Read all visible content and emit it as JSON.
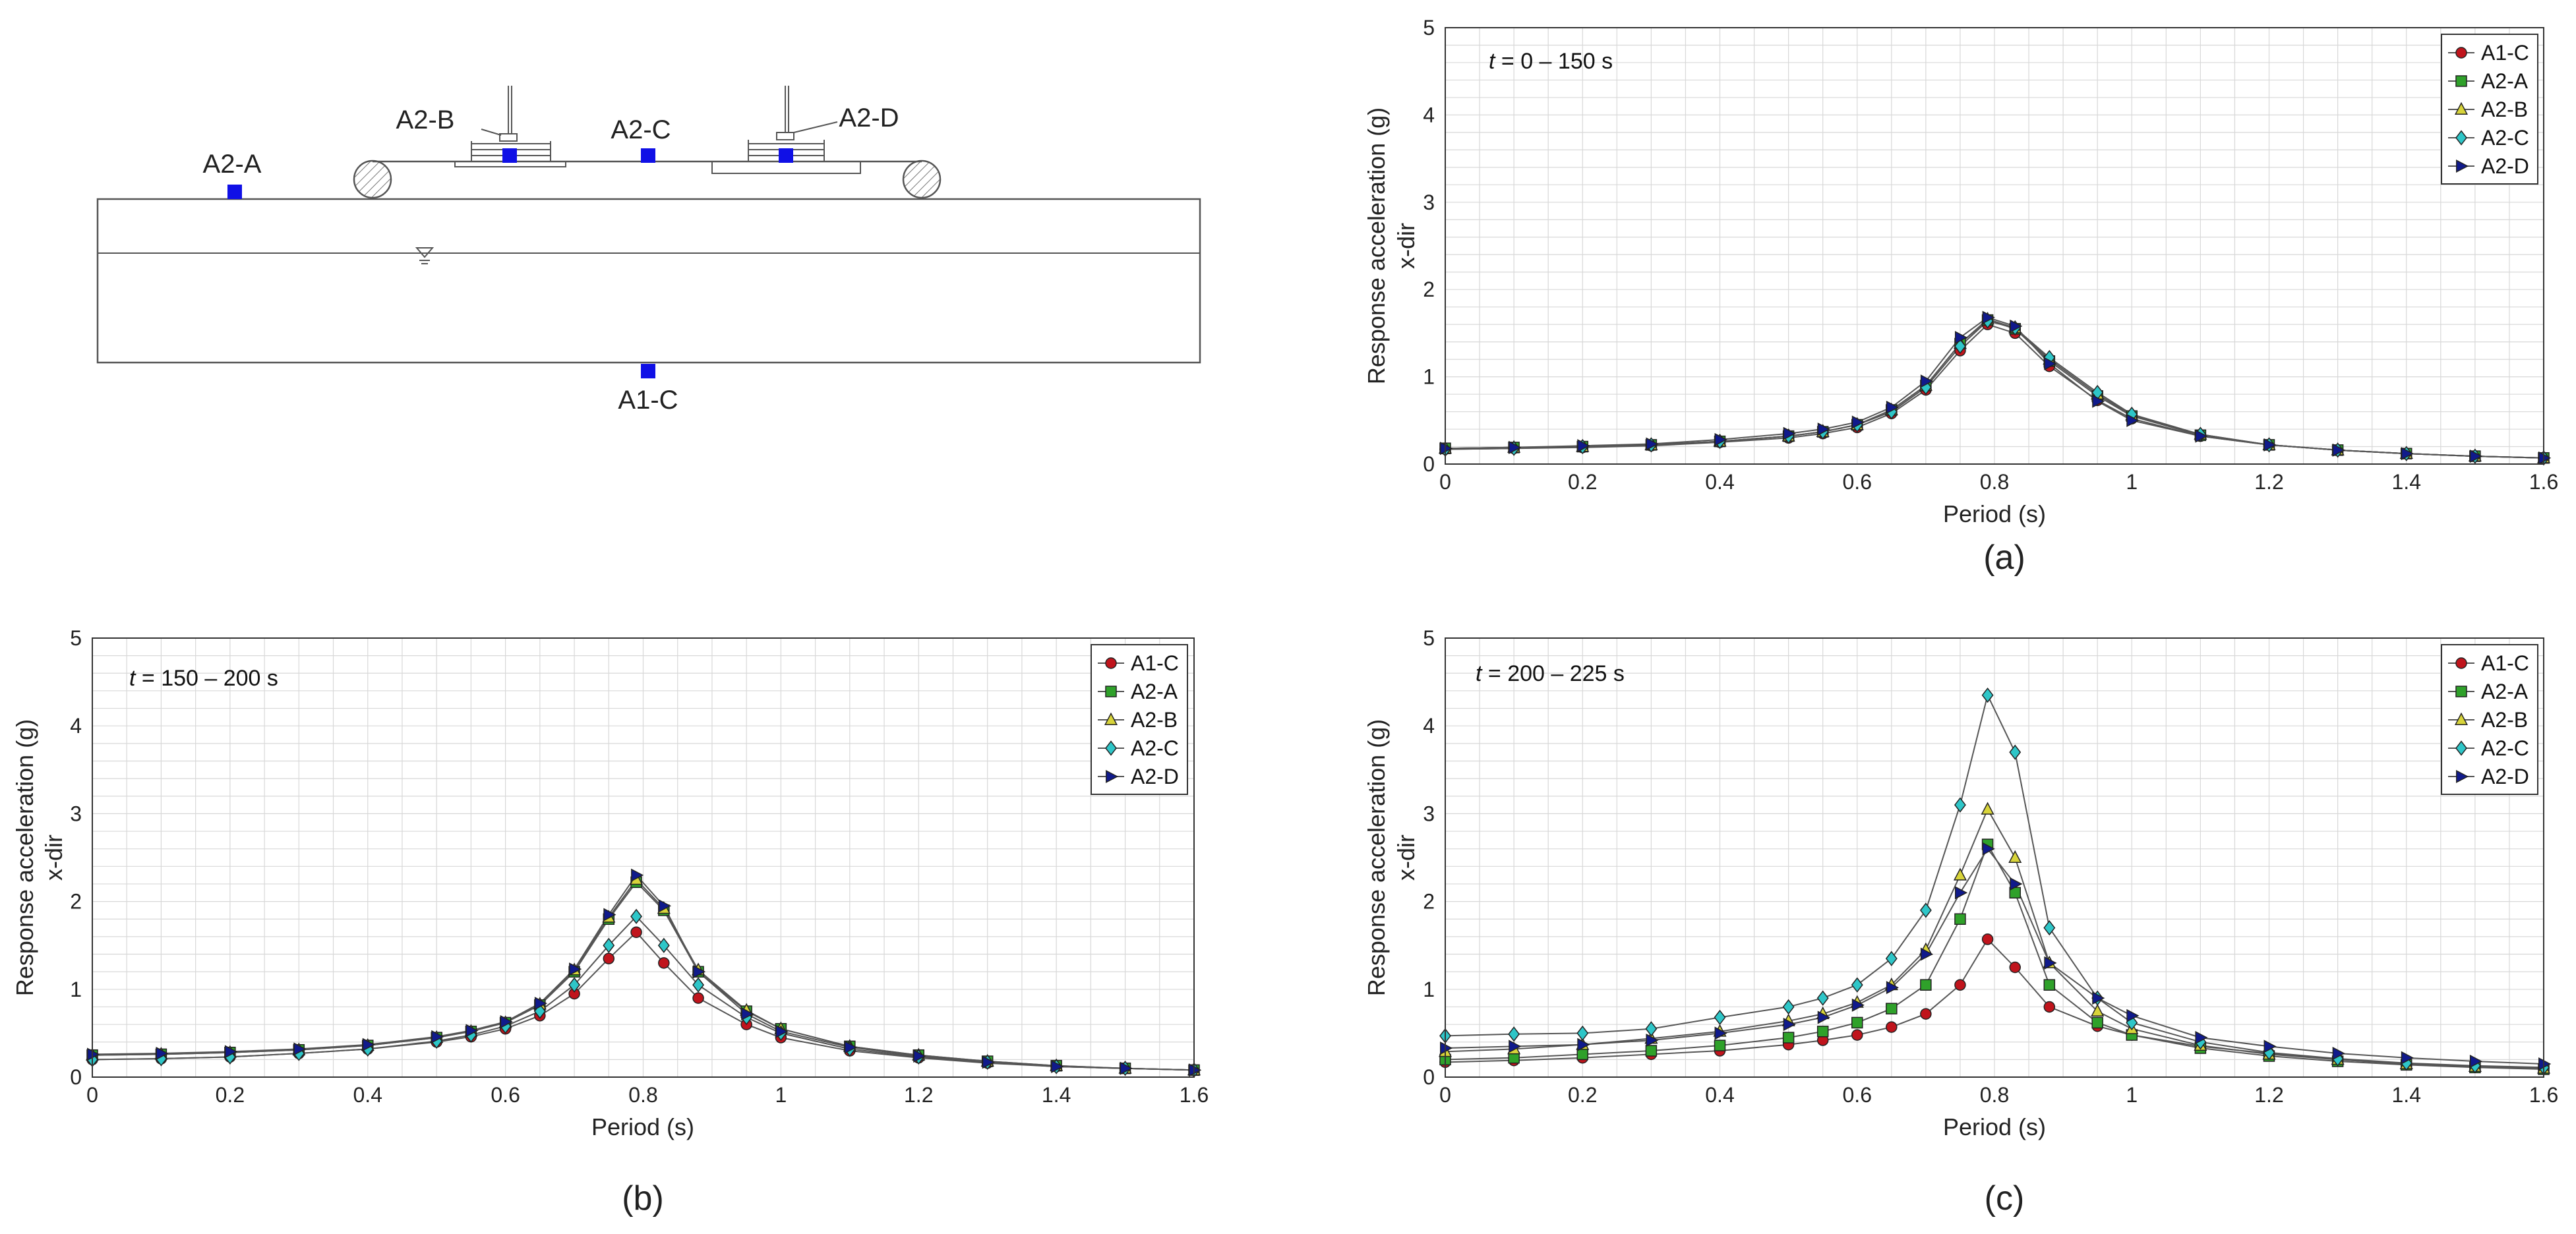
{
  "schematic": {
    "sensors": [
      {
        "id": "A2-A",
        "label": "A2-A"
      },
      {
        "id": "A2-B",
        "label": "A2-B"
      },
      {
        "id": "A2-C",
        "label": "A2-C"
      },
      {
        "id": "A2-D",
        "label": "A2-D"
      },
      {
        "id": "A1-C",
        "label": "A1-C"
      }
    ]
  },
  "colors": {
    "A1-C": "#c0141c",
    "A2-A": "#2fa12a",
    "A2-B": "#d8d43a",
    "A2-C": "#2ec6c8",
    "A2-D": "#101a8c",
    "sensor": "#1010e6",
    "grid": "#d8d8d8",
    "line": "#555555"
  },
  "chart_data": [
    {
      "id": "a",
      "type": "line",
      "caption": "(a)",
      "annotation": {
        "italic": "t",
        "rest": " = 0 – 150 s"
      },
      "xlabel": "Period (s)",
      "ylabel": "Response acceleration (g)",
      "ylabel2": "x-dir",
      "xlim": [
        0,
        1.6
      ],
      "ylim": [
        0,
        5
      ],
      "xticks": [
        "0",
        "0.2",
        "0.4",
        "0.6",
        "0.8",
        "1",
        "1.2",
        "1.4",
        "1.6"
      ],
      "yticks": [
        "0",
        "1",
        "2",
        "3",
        "4",
        "5"
      ],
      "legend": [
        "A1-C",
        "A2-A",
        "A2-B",
        "A2-C",
        "A2-D"
      ],
      "x": [
        0,
        0.1,
        0.2,
        0.3,
        0.4,
        0.5,
        0.55,
        0.6,
        0.65,
        0.7,
        0.75,
        0.79,
        0.83,
        0.88,
        0.95,
        1.0,
        1.1,
        1.2,
        1.3,
        1.4,
        1.5,
        1.6
      ],
      "series": [
        {
          "name": "A1-C",
          "marker": "circle",
          "values": [
            0.17,
            0.18,
            0.19,
            0.21,
            0.25,
            0.3,
            0.35,
            0.42,
            0.58,
            0.85,
            1.3,
            1.6,
            1.5,
            1.12,
            0.73,
            0.52,
            0.32,
            0.22,
            0.16,
            0.12,
            0.09,
            0.07
          ]
        },
        {
          "name": "A2-A",
          "marker": "square",
          "values": [
            0.18,
            0.19,
            0.2,
            0.22,
            0.26,
            0.32,
            0.37,
            0.45,
            0.62,
            0.9,
            1.38,
            1.65,
            1.55,
            1.18,
            0.78,
            0.55,
            0.33,
            0.22,
            0.16,
            0.12,
            0.09,
            0.07
          ]
        },
        {
          "name": "A2-B",
          "marker": "triangle-up",
          "values": [
            0.18,
            0.19,
            0.2,
            0.22,
            0.26,
            0.32,
            0.37,
            0.45,
            0.62,
            0.9,
            1.38,
            1.66,
            1.56,
            1.2,
            0.8,
            0.56,
            0.34,
            0.22,
            0.16,
            0.12,
            0.09,
            0.07
          ]
        },
        {
          "name": "A2-C",
          "marker": "diamond",
          "values": [
            0.17,
            0.18,
            0.2,
            0.22,
            0.26,
            0.32,
            0.37,
            0.45,
            0.6,
            0.88,
            1.35,
            1.64,
            1.56,
            1.22,
            0.82,
            0.57,
            0.34,
            0.22,
            0.16,
            0.12,
            0.09,
            0.07
          ]
        },
        {
          "name": "A2-D",
          "marker": "triangle-right",
          "values": [
            0.18,
            0.19,
            0.21,
            0.23,
            0.28,
            0.35,
            0.4,
            0.48,
            0.65,
            0.95,
            1.45,
            1.68,
            1.58,
            1.15,
            0.72,
            0.5,
            0.32,
            0.22,
            0.16,
            0.12,
            0.09,
            0.07
          ]
        }
      ]
    },
    {
      "id": "b",
      "type": "line",
      "caption": "(b)",
      "annotation": {
        "italic": "t",
        "rest": " = 150 – 200 s"
      },
      "xlabel": "Period (s)",
      "ylabel": "Response acceleration (g)",
      "ylabel2": "x-dir",
      "xlim": [
        0,
        1.6
      ],
      "ylim": [
        0,
        5
      ],
      "xticks": [
        "0",
        "0.2",
        "0.4",
        "0.6",
        "0.8",
        "1",
        "1.2",
        "1.4",
        "1.6"
      ],
      "yticks": [
        "0",
        "1",
        "2",
        "3",
        "4",
        "5"
      ],
      "legend": [
        "A1-C",
        "A2-A",
        "A2-B",
        "A2-C",
        "A2-D"
      ],
      "x": [
        0,
        0.1,
        0.2,
        0.3,
        0.4,
        0.5,
        0.55,
        0.6,
        0.65,
        0.7,
        0.75,
        0.79,
        0.83,
        0.88,
        0.95,
        1.0,
        1.1,
        1.2,
        1.3,
        1.4,
        1.5,
        1.6
      ],
      "series": [
        {
          "name": "A1-C",
          "marker": "circle",
          "values": [
            0.2,
            0.21,
            0.23,
            0.27,
            0.32,
            0.4,
            0.46,
            0.55,
            0.7,
            0.95,
            1.35,
            1.65,
            1.3,
            0.9,
            0.6,
            0.45,
            0.3,
            0.22,
            0.16,
            0.12,
            0.1,
            0.08
          ]
        },
        {
          "name": "A2-A",
          "marker": "square",
          "values": [
            0.25,
            0.26,
            0.28,
            0.31,
            0.36,
            0.45,
            0.52,
            0.62,
            0.82,
            1.2,
            1.8,
            2.22,
            1.9,
            1.2,
            0.75,
            0.55,
            0.35,
            0.25,
            0.18,
            0.13,
            0.1,
            0.08
          ]
        },
        {
          "name": "A2-B",
          "marker": "triangle-up",
          "values": [
            0.25,
            0.26,
            0.28,
            0.31,
            0.36,
            0.45,
            0.52,
            0.62,
            0.83,
            1.22,
            1.82,
            2.25,
            1.92,
            1.22,
            0.76,
            0.55,
            0.35,
            0.25,
            0.18,
            0.13,
            0.1,
            0.08
          ]
        },
        {
          "name": "A2-C",
          "marker": "diamond",
          "values": [
            0.2,
            0.21,
            0.23,
            0.27,
            0.32,
            0.41,
            0.48,
            0.58,
            0.75,
            1.05,
            1.5,
            1.83,
            1.5,
            1.05,
            0.68,
            0.5,
            0.32,
            0.23,
            0.17,
            0.12,
            0.1,
            0.08
          ]
        },
        {
          "name": "A2-D",
          "marker": "triangle-right",
          "values": [
            0.26,
            0.27,
            0.29,
            0.32,
            0.37,
            0.46,
            0.53,
            0.63,
            0.84,
            1.23,
            1.85,
            2.3,
            1.95,
            1.2,
            0.72,
            0.52,
            0.34,
            0.24,
            0.17,
            0.12,
            0.1,
            0.08
          ]
        }
      ]
    },
    {
      "id": "c",
      "type": "line",
      "caption": "(c)",
      "annotation": {
        "italic": "t",
        "rest": " = 200 – 225 s"
      },
      "xlabel": "Period (s)",
      "ylabel": "Response acceleration (g)",
      "ylabel2": "x-dir",
      "xlim": [
        0,
        1.6
      ],
      "ylim": [
        0,
        5
      ],
      "xticks": [
        "0",
        "0.2",
        "0.4",
        "0.6",
        "0.8",
        "1",
        "1.2",
        "1.4",
        "1.6"
      ],
      "yticks": [
        "0",
        "1",
        "2",
        "3",
        "4",
        "5"
      ],
      "legend": [
        "A1-C",
        "A2-A",
        "A2-B",
        "A2-C",
        "A2-D"
      ],
      "x": [
        0,
        0.1,
        0.2,
        0.3,
        0.4,
        0.5,
        0.55,
        0.6,
        0.65,
        0.7,
        0.75,
        0.79,
        0.83,
        0.88,
        0.95,
        1.0,
        1.1,
        1.2,
        1.3,
        1.4,
        1.5,
        1.6
      ],
      "series": [
        {
          "name": "A1-C",
          "marker": "circle",
          "values": [
            0.17,
            0.19,
            0.22,
            0.26,
            0.3,
            0.37,
            0.42,
            0.48,
            0.57,
            0.72,
            1.05,
            1.57,
            1.25,
            0.8,
            0.58,
            0.48,
            0.35,
            0.27,
            0.2,
            0.15,
            0.12,
            0.1
          ]
        },
        {
          "name": "A2-A",
          "marker": "square",
          "values": [
            0.2,
            0.22,
            0.26,
            0.3,
            0.36,
            0.45,
            0.52,
            0.62,
            0.78,
            1.05,
            1.8,
            2.65,
            2.1,
            1.05,
            0.62,
            0.48,
            0.33,
            0.24,
            0.18,
            0.14,
            0.11,
            0.09
          ]
        },
        {
          "name": "A2-B",
          "marker": "triangle-up",
          "values": [
            0.29,
            0.32,
            0.37,
            0.44,
            0.52,
            0.64,
            0.72,
            0.85,
            1.05,
            1.45,
            2.3,
            3.05,
            2.5,
            1.3,
            0.75,
            0.55,
            0.36,
            0.26,
            0.2,
            0.15,
            0.12,
            0.1
          ]
        },
        {
          "name": "A2-C",
          "marker": "diamond",
          "values": [
            0.47,
            0.49,
            0.5,
            0.55,
            0.68,
            0.8,
            0.9,
            1.05,
            1.35,
            1.9,
            3.1,
            4.35,
            3.7,
            1.7,
            0.9,
            0.62,
            0.4,
            0.28,
            0.21,
            0.16,
            0.13,
            0.11
          ]
        },
        {
          "name": "A2-D",
          "marker": "triangle-right",
          "values": [
            0.33,
            0.35,
            0.37,
            0.42,
            0.5,
            0.6,
            0.68,
            0.82,
            1.02,
            1.4,
            2.1,
            2.6,
            2.2,
            1.3,
            0.9,
            0.7,
            0.45,
            0.35,
            0.27,
            0.22,
            0.18,
            0.15
          ]
        }
      ]
    }
  ]
}
